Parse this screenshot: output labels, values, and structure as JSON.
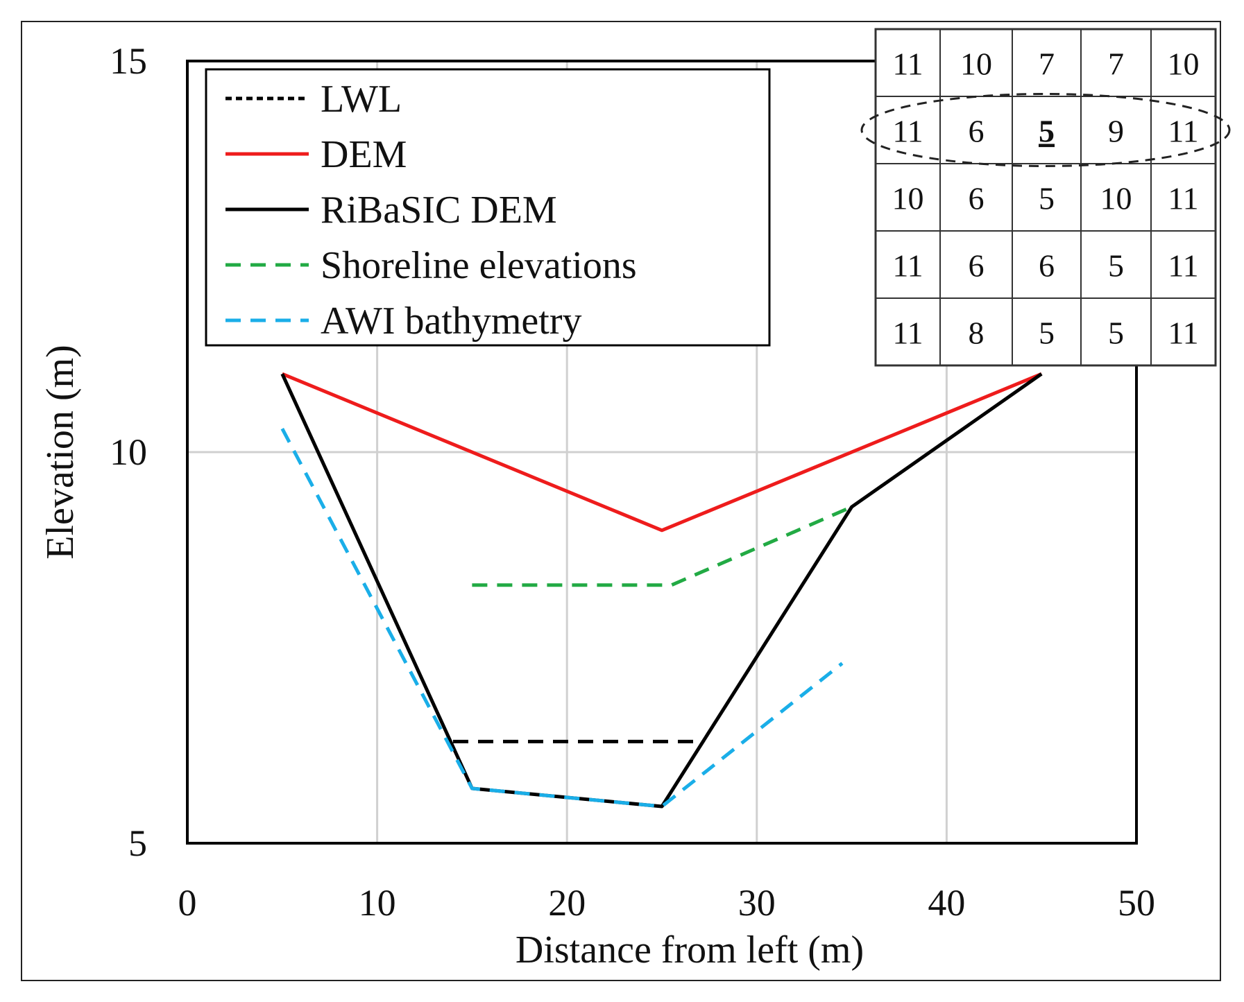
{
  "chart_data": {
    "type": "line",
    "xlabel": "Distance from left (m)",
    "ylabel": "Elevation (m)",
    "xlim": [
      0,
      50
    ],
    "ylim": [
      5,
      15
    ],
    "xticks": [
      0,
      10,
      20,
      30,
      40,
      50
    ],
    "yticks": [
      5,
      10,
      15
    ],
    "grid": true,
    "legend_position": "top-left",
    "series": [
      {
        "name": "LWL",
        "color": "#000000",
        "dash": "dashed",
        "points": [
          [
            14,
            6.3
          ],
          [
            27,
            6.3
          ]
        ]
      },
      {
        "name": "DEM",
        "color": "#ee1c1c",
        "dash": "solid",
        "points": [
          [
            5,
            11
          ],
          [
            25,
            9
          ],
          [
            45,
            11
          ]
        ]
      },
      {
        "name": "RiBaSIC DEM",
        "color": "#000000",
        "dash": "solid",
        "points": [
          [
            5,
            11
          ],
          [
            15,
            5.7
          ],
          [
            25,
            5.47
          ],
          [
            35,
            9.3
          ],
          [
            45,
            11
          ]
        ]
      },
      {
        "name": "Shoreline elevations",
        "color": "#22aa44",
        "dash": "dashed",
        "points": [
          [
            15,
            8.3
          ],
          [
            25.5,
            8.3
          ],
          [
            35,
            9.3
          ]
        ]
      },
      {
        "name": "AWI bathymetry",
        "color": "#1aaee8",
        "dash": "dashed",
        "points": [
          [
            5,
            10.3
          ],
          [
            15,
            5.7
          ],
          [
            25,
            5.47
          ],
          [
            34.5,
            7.3
          ]
        ]
      }
    ],
    "inset_grid": {
      "rows": [
        [
          "11",
          "10",
          "7",
          "7",
          "10"
        ],
        [
          "11",
          "6",
          "5",
          "9",
          "11"
        ],
        [
          "10",
          "6",
          "5",
          "10",
          "11"
        ],
        [
          "11",
          "6",
          "6",
          "5",
          "11"
        ],
        [
          "11",
          "8",
          "5",
          "5",
          "11"
        ]
      ],
      "highlighted_row": 1,
      "highlighted_cell": [
        1,
        2
      ]
    }
  }
}
